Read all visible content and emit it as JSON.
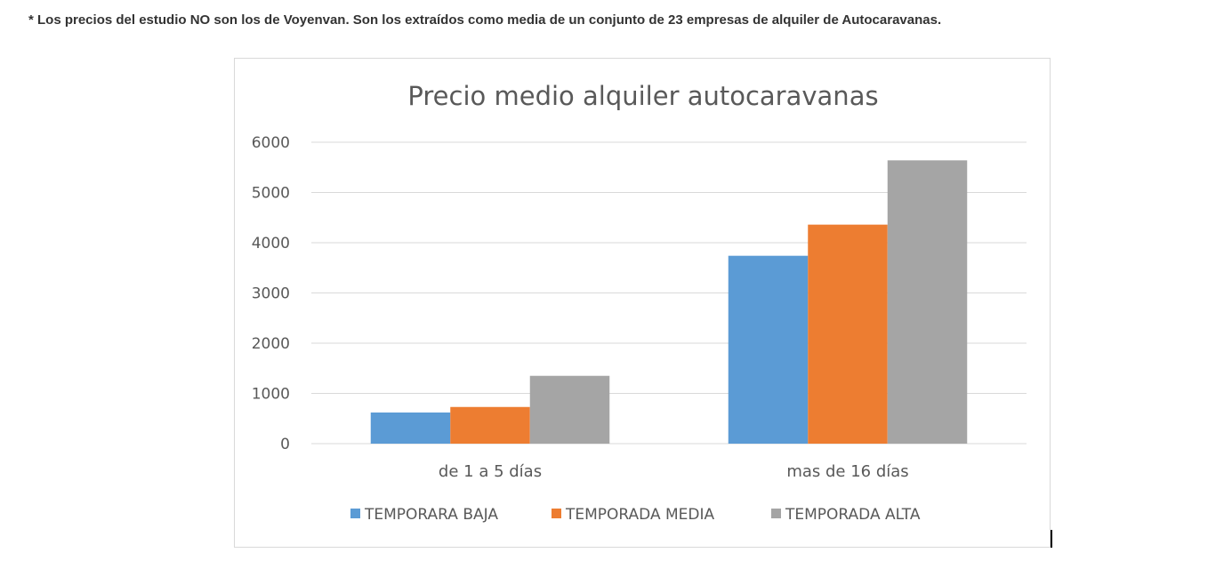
{
  "note": "* Los precios del estudio NO son los de Voyenvan. Son los extraídos como media de un conjunto de 23 empresas de alquiler de Autocaravanas.",
  "chart_data": {
    "type": "bar",
    "title": "Precio medio alquiler autocaravanas",
    "categories": [
      "de 1 a 5 días",
      "mas de 16 días"
    ],
    "series": [
      {
        "name": "TEMPORARA BAJA",
        "color": "#5b9bd5",
        "values": [
          620,
          3740
        ]
      },
      {
        "name": "TEMPORADA MEDIA",
        "color": "#ed7d31",
        "values": [
          730,
          4360
        ]
      },
      {
        "name": "TEMPORADA ALTA",
        "color": "#a5a5a5",
        "values": [
          1350,
          5640
        ]
      }
    ],
    "ylim": [
      0,
      6000
    ],
    "yticks": [
      "0",
      "1000",
      "2000",
      "3000",
      "4000",
      "5000",
      "6000"
    ],
    "grid": true,
    "legend": "bottom",
    "xlabel": "",
    "ylabel": ""
  }
}
